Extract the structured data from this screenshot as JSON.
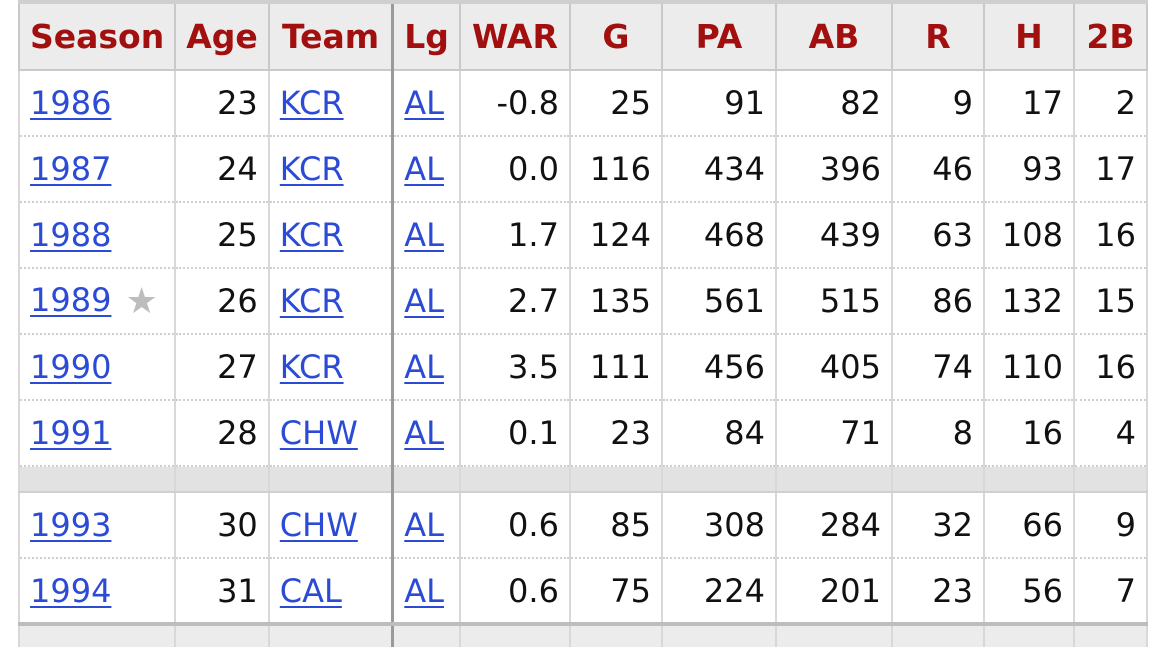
{
  "columns": [
    "Season",
    "Age",
    "Team",
    "Lg",
    "WAR",
    "G",
    "PA",
    "AB",
    "R",
    "H",
    "2B"
  ],
  "rows": [
    {
      "season": "1986",
      "star": "",
      "age": "23",
      "team": "KCR",
      "lg": "AL",
      "war": "-0.8",
      "g": "25",
      "pa": "91",
      "ab": "82",
      "r": "9",
      "h": "17",
      "b2": "2"
    },
    {
      "season": "1987",
      "star": "",
      "age": "24",
      "team": "KCR",
      "lg": "AL",
      "war": "0.0",
      "g": "116",
      "pa": "434",
      "ab": "396",
      "r": "46",
      "h": "93",
      "b2": "17"
    },
    {
      "season": "1988",
      "star": "",
      "age": "25",
      "team": "KCR",
      "lg": "AL",
      "war": "1.7",
      "g": "124",
      "pa": "468",
      "ab": "439",
      "r": "63",
      "h": "108",
      "b2": "16"
    },
    {
      "season": "1989",
      "star": "★",
      "age": "26",
      "team": "KCR",
      "lg": "AL",
      "war": "2.7",
      "g": "135",
      "pa": "561",
      "ab": "515",
      "r": "86",
      "h": "132",
      "b2": "15"
    },
    {
      "season": "1990",
      "star": "",
      "age": "27",
      "team": "KCR",
      "lg": "AL",
      "war": "3.5",
      "g": "111",
      "pa": "456",
      "ab": "405",
      "r": "74",
      "h": "110",
      "b2": "16"
    },
    {
      "season": "1991",
      "star": "",
      "age": "28",
      "team": "CHW",
      "lg": "AL",
      "war": "0.1",
      "g": "23",
      "pa": "84",
      "ab": "71",
      "r": "8",
      "h": "16",
      "b2": "4"
    }
  ],
  "rows_after_gap": [
    {
      "season": "1993",
      "star": "",
      "age": "30",
      "team": "CHW",
      "lg": "AL",
      "war": "0.6",
      "g": "85",
      "pa": "308",
      "ab": "284",
      "r": "32",
      "h": "66",
      "b2": "9"
    },
    {
      "season": "1994",
      "star": "",
      "age": "31",
      "team": "CAL",
      "lg": "AL",
      "war": "0.6",
      "g": "75",
      "pa": "224",
      "ab": "201",
      "r": "23",
      "h": "56",
      "b2": "7"
    }
  ],
  "colors": {
    "header_text": "#a10f0f",
    "link": "#2b4bd6",
    "header_bg": "#ececec",
    "spacer_bg": "#e2e2e2",
    "star": "#bdbdbd"
  },
  "icons": {
    "all_star": "star-icon"
  }
}
